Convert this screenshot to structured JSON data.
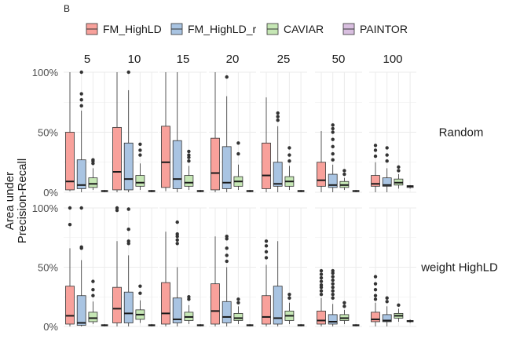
{
  "chart_data": {
    "type": "box",
    "panel_tag": "B",
    "ylabel_lines": [
      "Area under",
      "Precision-Recall"
    ],
    "y_ticks": [
      "0%",
      "50%",
      "100%"
    ],
    "ylim": [
      0,
      100
    ],
    "column_facets": [
      "5",
      "10",
      "15",
      "20",
      "25",
      "50",
      "100"
    ],
    "row_facets": [
      "Random",
      "weight HighLD"
    ],
    "legend": [
      {
        "name": "FM_HighLD",
        "color": "#f8a19b"
      },
      {
        "name": "FM_HighLD_r",
        "color": "#a9c4e2"
      },
      {
        "name": "CAVIAR",
        "color": "#c6e7b5"
      },
      {
        "name": "PAINTOR",
        "color": "#d9bfe0"
      }
    ],
    "panels": [
      [
        {
          "boxes": [
            {
              "min": 1,
              "q1": 2,
              "median": 9,
              "q3": 50,
              "max": 100,
              "outliers": []
            },
            {
              "min": 0,
              "q1": 3,
              "median": 6,
              "q3": 27,
              "max": 68,
              "outliers": [
                72,
                77,
                82,
                100
              ]
            },
            {
              "min": 2,
              "q1": 4,
              "median": 7,
              "q3": 12,
              "max": 20,
              "outliers": [
                24,
                26,
                27
              ]
            },
            {
              "min": 0,
              "q1": 0.5,
              "median": 1,
              "q3": 1.5,
              "max": 2,
              "outliers": []
            }
          ]
        },
        {
          "boxes": [
            {
              "min": 0,
              "q1": 2,
              "median": 17,
              "q3": 54,
              "max": 100,
              "outliers": []
            },
            {
              "min": 0,
              "q1": 2,
              "median": 11,
              "q3": 41,
              "max": 85,
              "outliers": [
                100
              ]
            },
            {
              "min": 2,
              "q1": 5,
              "median": 8,
              "q3": 14,
              "max": 24,
              "outliers": [
                31,
                35,
                40
              ]
            },
            {
              "min": 0,
              "q1": 0.5,
              "median": 1,
              "q3": 1.5,
              "max": 2,
              "outliers": []
            }
          ]
        },
        {
          "boxes": [
            {
              "min": 1,
              "q1": 4,
              "median": 25,
              "q3": 55,
              "max": 100,
              "outliers": []
            },
            {
              "min": 0,
              "q1": 3,
              "median": 11,
              "q3": 43,
              "max": 100,
              "outliers": []
            },
            {
              "min": 2,
              "q1": 5,
              "median": 8,
              "q3": 14,
              "max": 22,
              "outliers": [
                26,
                29,
                31,
                34
              ]
            },
            {
              "min": 0,
              "q1": 0.5,
              "median": 1,
              "q3": 1.5,
              "max": 2,
              "outliers": []
            }
          ]
        },
        {
          "boxes": [
            {
              "min": 0,
              "q1": 2,
              "median": 16,
              "q3": 45,
              "max": 100,
              "outliers": []
            },
            {
              "min": 0,
              "q1": 3,
              "median": 8,
              "q3": 38,
              "max": 80,
              "outliers": [
                96
              ]
            },
            {
              "min": 2,
              "q1": 5,
              "median": 9,
              "q3": 13,
              "max": 23,
              "outliers": [
                32,
                41
              ]
            },
            {
              "min": 0,
              "q1": 0.5,
              "median": 1,
              "q3": 1.5,
              "max": 2,
              "outliers": []
            }
          ]
        },
        {
          "boxes": [
            {
              "min": 0,
              "q1": 3,
              "median": 14,
              "q3": 41,
              "max": 79,
              "outliers": []
            },
            {
              "min": 0,
              "q1": 5,
              "median": 7,
              "q3": 25,
              "max": 55,
              "outliers": [
                60,
                63,
                66
              ]
            },
            {
              "min": 2,
              "q1": 5,
              "median": 9,
              "q3": 13,
              "max": 22,
              "outliers": [
                26,
                31,
                37
              ]
            },
            {
              "min": 0,
              "q1": 0.5,
              "median": 1,
              "q3": 1.5,
              "max": 2,
              "outliers": []
            }
          ]
        },
        {
          "boxes": [
            {
              "min": 0,
              "q1": 5,
              "median": 10,
              "q3": 25,
              "max": 51,
              "outliers": []
            },
            {
              "min": 0,
              "q1": 4,
              "median": 6,
              "q3": 15,
              "max": 23,
              "outliers": [
                27,
                32,
                38,
                44,
                50,
                53,
                56
              ]
            },
            {
              "min": 2,
              "q1": 4,
              "median": 6,
              "q3": 9,
              "max": 12,
              "outliers": [
                15,
                18
              ]
            },
            {
              "min": 0,
              "q1": 0.5,
              "median": 1,
              "q3": 1.5,
              "max": 2,
              "outliers": []
            }
          ]
        },
        {
          "boxes": [
            {
              "min": 0,
              "q1": 5,
              "median": 7,
              "q3": 14,
              "max": 25,
              "outliers": [
                30,
                35,
                39
              ]
            },
            {
              "min": 0,
              "q1": 5,
              "median": 6,
              "q3": 12,
              "max": 20,
              "outliers": [
                26,
                31,
                37
              ]
            },
            {
              "min": 3,
              "q1": 6,
              "median": 8,
              "q3": 11,
              "max": 15,
              "outliers": [
                18,
                21
              ]
            },
            {
              "min": 3,
              "q1": 4,
              "median": 5,
              "q3": 5.5,
              "max": 6,
              "outliers": []
            }
          ]
        }
      ],
      [
        {
          "boxes": [
            {
              "min": 0,
              "q1": 2,
              "median": 9,
              "q3": 34,
              "max": 66,
              "outliers": [
                86,
                100
              ]
            },
            {
              "min": 0,
              "q1": 1,
              "median": 3,
              "q3": 26,
              "max": 56,
              "outliers": [
                66,
                67,
                100
              ]
            },
            {
              "min": 2,
              "q1": 4,
              "median": 7,
              "q3": 12,
              "max": 21,
              "outliers": [
                26,
                31,
                38
              ]
            },
            {
              "min": 0,
              "q1": 0.5,
              "median": 1,
              "q3": 1.5,
              "max": 2,
              "outliers": []
            }
          ]
        },
        {
          "boxes": [
            {
              "min": 0,
              "q1": 3,
              "median": 15,
              "q3": 33,
              "max": 72,
              "outliers": [
                98,
                100
              ]
            },
            {
              "min": 0,
              "q1": 3,
              "median": 11,
              "q3": 29,
              "max": 60,
              "outliers": [
                70,
                72,
                82,
                99
              ]
            },
            {
              "min": 3,
              "q1": 6,
              "median": 10,
              "q3": 14,
              "max": 22,
              "outliers": [
                28,
                34
              ]
            },
            {
              "min": 0,
              "q1": 0.5,
              "median": 1,
              "q3": 1.5,
              "max": 2,
              "outliers": []
            }
          ]
        },
        {
          "boxes": [
            {
              "min": 0,
              "q1": 2,
              "median": 11,
              "q3": 37,
              "max": 80,
              "outliers": []
            },
            {
              "min": 0,
              "q1": 3,
              "median": 6,
              "q3": 24,
              "max": 50,
              "outliers": [
                70,
                73,
                76,
                78,
                88
              ]
            },
            {
              "min": 2,
              "q1": 5,
              "median": 8,
              "q3": 12,
              "max": 18,
              "outliers": [
                23,
                25
              ]
            },
            {
              "min": 0,
              "q1": 0.5,
              "median": 1,
              "q3": 1.5,
              "max": 2,
              "outliers": []
            }
          ]
        },
        {
          "boxes": [
            {
              "min": 0,
              "q1": 2,
              "median": 13,
              "q3": 36,
              "max": 76,
              "outliers": []
            },
            {
              "min": 0,
              "q1": 3,
              "median": 8,
              "q3": 21,
              "max": 50,
              "outliers": [
                55,
                60,
                66,
                74,
                76
              ]
            },
            {
              "min": 2,
              "q1": 5,
              "median": 7,
              "q3": 11,
              "max": 17,
              "outliers": [
                20,
                23
              ]
            },
            {
              "min": 0,
              "q1": 0.5,
              "median": 1,
              "q3": 1.5,
              "max": 2,
              "outliers": []
            }
          ]
        },
        {
          "boxes": [
            {
              "min": 0,
              "q1": 2,
              "median": 8,
              "q3": 26,
              "max": 52,
              "outliers": [
                58,
                63,
                68,
                72
              ]
            },
            {
              "min": 0,
              "q1": 2,
              "median": 7,
              "q3": 34,
              "max": 72,
              "outliers": []
            },
            {
              "min": 2,
              "q1": 5,
              "median": 9,
              "q3": 13,
              "max": 20,
              "outliers": [
                24,
                27
              ]
            },
            {
              "min": 0,
              "q1": 0.5,
              "median": 1,
              "q3": 1.5,
              "max": 2,
              "outliers": []
            }
          ]
        },
        {
          "boxes": [
            {
              "min": 0,
              "q1": 2,
              "median": 5,
              "q3": 13,
              "max": 24,
              "outliers": [
                27,
                30,
                33,
                35,
                38,
                41,
                44,
                47
              ]
            },
            {
              "min": 0,
              "q1": 2,
              "median": 4,
              "q3": 10,
              "max": 19,
              "outliers": [
                24,
                27,
                30,
                33,
                36,
                39,
                42,
                45,
                47
              ]
            },
            {
              "min": 2,
              "q1": 5,
              "median": 7,
              "q3": 10,
              "max": 14,
              "outliers": [
                17,
                20
              ]
            },
            {
              "min": 0,
              "q1": 0.5,
              "median": 1,
              "q3": 1.5,
              "max": 2,
              "outliers": []
            }
          ]
        },
        {
          "boxes": [
            {
              "min": 0,
              "q1": 4,
              "median": 6,
              "q3": 12,
              "max": 20,
              "outliers": [
                23,
                26,
                31,
                36,
                42
              ]
            },
            {
              "min": 0,
              "q1": 4,
              "median": 5,
              "q3": 10,
              "max": 17,
              "outliers": [
                21,
                24
              ]
            },
            {
              "min": 4,
              "q1": 7,
              "median": 9,
              "q3": 11,
              "max": 15,
              "outliers": [
                18
              ]
            },
            {
              "min": 3,
              "q1": 4,
              "median": 4.5,
              "q3": 5,
              "max": 6,
              "outliers": []
            }
          ]
        }
      ]
    ]
  }
}
